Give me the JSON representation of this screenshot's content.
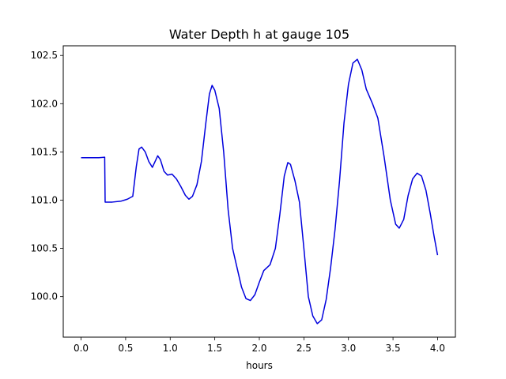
{
  "chart_data": {
    "type": "line",
    "title": "Water Depth h at gauge 105",
    "xlabel": "hours",
    "ylabel": "",
    "xlim": [
      -0.2,
      4.2
    ],
    "ylim": [
      99.58,
      102.6
    ],
    "xticks": [
      0.0,
      0.5,
      1.0,
      1.5,
      2.0,
      2.5,
      3.0,
      3.5,
      4.0
    ],
    "xtick_labels": [
      "0.0",
      "0.5",
      "1.0",
      "1.5",
      "2.0",
      "2.5",
      "3.0",
      "3.5",
      "4.0"
    ],
    "yticks": [
      100.0,
      100.5,
      101.0,
      101.5,
      102.0,
      102.5
    ],
    "ytick_labels": [
      "100.0",
      "100.5",
      "101.0",
      "101.5",
      "102.0",
      "102.5"
    ],
    "grid": false,
    "series": [
      {
        "color": "#0000dd",
        "points": [
          [
            0.0,
            101.44
          ],
          [
            0.1,
            101.44
          ],
          [
            0.2,
            101.44
          ],
          [
            0.265,
            101.445
          ],
          [
            0.27,
            100.98
          ],
          [
            0.35,
            100.98
          ],
          [
            0.45,
            100.99
          ],
          [
            0.52,
            101.01
          ],
          [
            0.58,
            101.04
          ],
          [
            0.62,
            101.35
          ],
          [
            0.65,
            101.53
          ],
          [
            0.68,
            101.55
          ],
          [
            0.72,
            101.5
          ],
          [
            0.76,
            101.4
          ],
          [
            0.8,
            101.34
          ],
          [
            0.84,
            101.42
          ],
          [
            0.86,
            101.46
          ],
          [
            0.89,
            101.42
          ],
          [
            0.93,
            101.3
          ],
          [
            0.97,
            101.26
          ],
          [
            1.02,
            101.27
          ],
          [
            1.07,
            101.22
          ],
          [
            1.12,
            101.14
          ],
          [
            1.17,
            101.05
          ],
          [
            1.21,
            101.01
          ],
          [
            1.25,
            101.04
          ],
          [
            1.3,
            101.16
          ],
          [
            1.35,
            101.4
          ],
          [
            1.4,
            101.8
          ],
          [
            1.44,
            102.1
          ],
          [
            1.47,
            102.19
          ],
          [
            1.5,
            102.14
          ],
          [
            1.55,
            101.95
          ],
          [
            1.6,
            101.5
          ],
          [
            1.65,
            100.9
          ],
          [
            1.7,
            100.5
          ],
          [
            1.75,
            100.3
          ],
          [
            1.8,
            100.1
          ],
          [
            1.85,
            99.98
          ],
          [
            1.9,
            99.96
          ],
          [
            1.95,
            100.02
          ],
          [
            2.0,
            100.15
          ],
          [
            2.05,
            100.27
          ],
          [
            2.12,
            100.33
          ],
          [
            2.18,
            100.5
          ],
          [
            2.23,
            100.85
          ],
          [
            2.28,
            101.25
          ],
          [
            2.32,
            101.39
          ],
          [
            2.35,
            101.37
          ],
          [
            2.4,
            101.2
          ],
          [
            2.45,
            100.98
          ],
          [
            2.5,
            100.5
          ],
          [
            2.55,
            100.0
          ],
          [
            2.6,
            99.8
          ],
          [
            2.65,
            99.72
          ],
          [
            2.7,
            99.76
          ],
          [
            2.75,
            99.97
          ],
          [
            2.8,
            100.3
          ],
          [
            2.85,
            100.7
          ],
          [
            2.9,
            101.2
          ],
          [
            2.95,
            101.8
          ],
          [
            3.0,
            102.2
          ],
          [
            3.05,
            102.42
          ],
          [
            3.1,
            102.46
          ],
          [
            3.15,
            102.35
          ],
          [
            3.2,
            102.15
          ],
          [
            3.27,
            102.0
          ],
          [
            3.33,
            101.85
          ],
          [
            3.4,
            101.45
          ],
          [
            3.47,
            101.0
          ],
          [
            3.53,
            100.75
          ],
          [
            3.57,
            100.71
          ],
          [
            3.62,
            100.8
          ],
          [
            3.67,
            101.05
          ],
          [
            3.72,
            101.22
          ],
          [
            3.77,
            101.28
          ],
          [
            3.82,
            101.25
          ],
          [
            3.87,
            101.1
          ],
          [
            3.92,
            100.85
          ],
          [
            3.96,
            100.63
          ],
          [
            4.0,
            100.43
          ]
        ]
      }
    ]
  }
}
